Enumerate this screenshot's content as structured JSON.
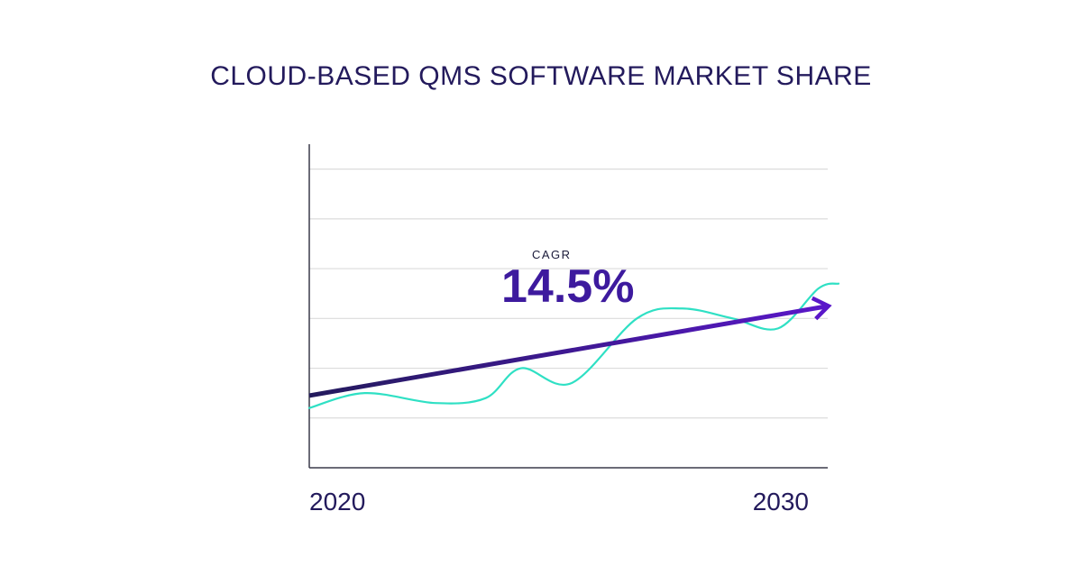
{
  "chart_data": {
    "type": "line",
    "title": "CLOUD-BASED QMS SOFTWARE MARKET SHARE",
    "x_tick_labels": [
      "2020",
      "2030"
    ],
    "xlim": [
      2020,
      2030.5
    ],
    "ylim": [
      0,
      6.5
    ],
    "grid": true,
    "series": [
      {
        "x": [
          2020.0,
          2021.1,
          2022.5,
          2023.5,
          2024.2,
          2025.2,
          2026.5,
          2027.4,
          2028.4,
          2029.3,
          2030.1,
          2030.5
        ],
        "values": [
          1.2,
          1.5,
          1.3,
          1.4,
          2.0,
          1.7,
          3.0,
          3.2,
          3.0,
          2.8,
          3.6,
          3.7
        ]
      }
    ],
    "trend": {
      "x": [
        2020.0,
        2030.3
      ],
      "values": [
        1.45,
        3.25
      ],
      "arrow": true
    },
    "annotation": {
      "label": "CAGR",
      "value": "14.5%"
    },
    "colors": {
      "series": "#2fe0c4",
      "trend_start": "#231a5c",
      "trend_end": "#5a17c9",
      "axis": "#3a3a4a",
      "grid": "#dcdcdc",
      "title": "#231a5c",
      "annotation": "#3d1a9e"
    }
  }
}
